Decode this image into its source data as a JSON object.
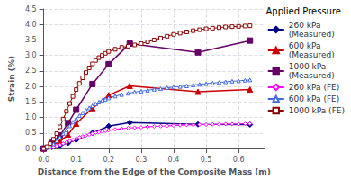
{
  "chart_data": {
    "type": "line",
    "legend_title": "Applied Pressure",
    "xlabel": "Distance from the Edge of the Composite Mass (m)",
    "ylabel": "Strain (%)",
    "xlim": [
      0.0,
      0.68
    ],
    "ylim": [
      0.0,
      4.5
    ],
    "xticks": [
      {
        "value": 0.0,
        "label": "0.0"
      },
      0.1,
      0.2,
      0.3,
      0.4,
      0.5,
      0.6
    ],
    "yticks": [
      {
        "value": 0.0,
        "label": "0.0"
      },
      0.5,
      {
        "value": 1.0,
        "label": "1.0"
      },
      1.5,
      {
        "value": 2.0,
        "label": "2.0"
      },
      2.5,
      {
        "value": 3.0,
        "label": "3.0"
      },
      3.5,
      {
        "value": 4.0,
        "label": "4.0"
      },
      4.5
    ],
    "grid": true,
    "legend": "right",
    "series": [
      {
        "name": "260 kPa\n(Measured)",
        "color": "#00008B",
        "marker": "diamond",
        "line_style": "solid",
        "x": [
          0.0,
          0.025,
          0.05,
          0.075,
          0.1,
          0.15,
          0.2,
          0.265,
          0.475,
          0.635
        ],
        "values": [
          0.0,
          0.05,
          0.1,
          0.18,
          0.28,
          0.5,
          0.72,
          0.84,
          0.78,
          0.77
        ]
      },
      {
        "name": "600 kPa\n(Measured)",
        "color": "#CC0000",
        "marker": "triangle",
        "line_style": "solid",
        "x": [
          0.0,
          0.025,
          0.05,
          0.075,
          0.1,
          0.15,
          0.2,
          0.265,
          0.475,
          0.635
        ],
        "values": [
          0.0,
          0.1,
          0.22,
          0.45,
          0.8,
          1.3,
          1.72,
          2.02,
          1.83,
          1.9
        ]
      },
      {
        "name": "1000 kPa\n(Measured)",
        "color": "#660066",
        "marker": "square",
        "line_style": "solid",
        "x": [
          0.0,
          0.025,
          0.05,
          0.075,
          0.1,
          0.15,
          0.2,
          0.265,
          0.475,
          0.635
        ],
        "values": [
          0.0,
          0.18,
          0.42,
          0.82,
          1.25,
          2.08,
          2.72,
          3.38,
          3.1,
          3.48
        ]
      },
      {
        "name": "260 kPa (FE)",
        "color": "#FF00FF",
        "marker": "diamond-open",
        "line_style": "solid",
        "x": [
          0.0,
          0.01,
          0.02,
          0.03,
          0.04,
          0.05,
          0.06,
          0.07,
          0.08,
          0.09,
          0.1,
          0.11,
          0.12,
          0.13,
          0.14,
          0.15,
          0.16,
          0.17,
          0.18,
          0.19,
          0.2,
          0.22,
          0.24,
          0.26,
          0.28,
          0.3,
          0.32,
          0.34,
          0.36,
          0.38,
          0.4,
          0.42,
          0.44,
          0.46,
          0.48,
          0.5,
          0.52,
          0.54,
          0.56,
          0.58,
          0.6,
          0.62,
          0.635
        ],
        "values": [
          0.0,
          0.01,
          0.03,
          0.05,
          0.08,
          0.12,
          0.16,
          0.2,
          0.24,
          0.28,
          0.32,
          0.36,
          0.39,
          0.42,
          0.45,
          0.48,
          0.51,
          0.53,
          0.55,
          0.57,
          0.59,
          0.62,
          0.64,
          0.66,
          0.67,
          0.68,
          0.7,
          0.71,
          0.72,
          0.73,
          0.74,
          0.75,
          0.76,
          0.76,
          0.77,
          0.77,
          0.78,
          0.78,
          0.79,
          0.79,
          0.79,
          0.8,
          0.8
        ]
      },
      {
        "name": "600 kPa (FE)",
        "color": "#4169E1",
        "marker": "triangle-open",
        "line_style": "solid",
        "x": [
          0.0,
          0.01,
          0.02,
          0.03,
          0.04,
          0.05,
          0.06,
          0.07,
          0.08,
          0.09,
          0.1,
          0.11,
          0.12,
          0.13,
          0.14,
          0.15,
          0.16,
          0.17,
          0.18,
          0.19,
          0.2,
          0.22,
          0.24,
          0.26,
          0.28,
          0.3,
          0.32,
          0.34,
          0.36,
          0.38,
          0.4,
          0.42,
          0.44,
          0.46,
          0.48,
          0.5,
          0.52,
          0.54,
          0.56,
          0.58,
          0.6,
          0.62,
          0.635
        ],
        "values": [
          0.0,
          0.03,
          0.08,
          0.15,
          0.25,
          0.36,
          0.48,
          0.6,
          0.73,
          0.85,
          0.96,
          1.06,
          1.15,
          1.23,
          1.31,
          1.38,
          1.44,
          1.5,
          1.55,
          1.59,
          1.63,
          1.69,
          1.74,
          1.78,
          1.82,
          1.85,
          1.88,
          1.91,
          1.93,
          1.96,
          1.98,
          2.0,
          2.02,
          2.05,
          2.07,
          2.09,
          2.11,
          2.13,
          2.15,
          2.17,
          2.18,
          2.2,
          2.21
        ]
      },
      {
        "name": "1000 kPa (FE)",
        "color": "#8B0000",
        "marker": "square-open",
        "line_style": "solid",
        "x": [
          0.0,
          0.01,
          0.02,
          0.03,
          0.04,
          0.05,
          0.06,
          0.07,
          0.08,
          0.09,
          0.1,
          0.11,
          0.12,
          0.13,
          0.14,
          0.15,
          0.16,
          0.17,
          0.18,
          0.19,
          0.2,
          0.22,
          0.24,
          0.26,
          0.28,
          0.3,
          0.32,
          0.34,
          0.36,
          0.38,
          0.4,
          0.42,
          0.44,
          0.46,
          0.48,
          0.5,
          0.52,
          0.54,
          0.56,
          0.58,
          0.6,
          0.62,
          0.635
        ],
        "values": [
          0.0,
          0.06,
          0.16,
          0.3,
          0.48,
          0.7,
          0.95,
          1.2,
          1.45,
          1.68,
          1.9,
          2.1,
          2.28,
          2.45,
          2.6,
          2.73,
          2.84,
          2.93,
          3.0,
          3.07,
          3.13,
          3.2,
          3.26,
          3.3,
          3.34,
          3.38,
          3.44,
          3.5,
          3.56,
          3.62,
          3.68,
          3.72,
          3.76,
          3.8,
          3.83,
          3.86,
          3.88,
          3.9,
          3.92,
          3.93,
          3.94,
          3.95,
          3.96
        ]
      }
    ]
  }
}
